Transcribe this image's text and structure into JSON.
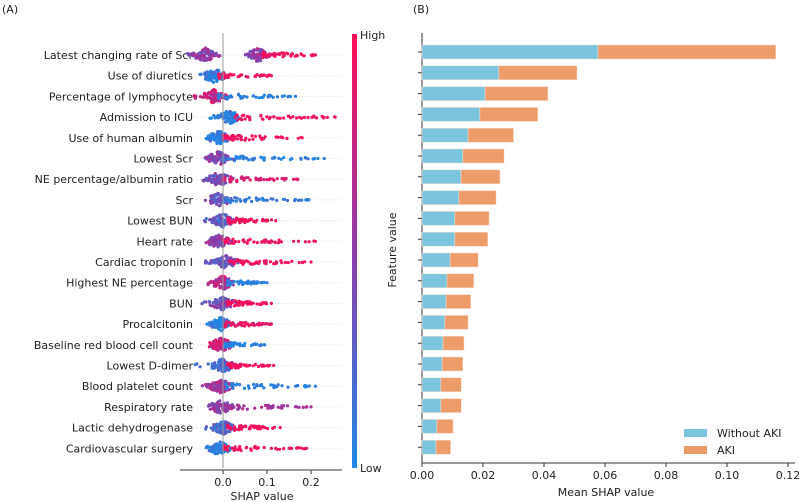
{
  "chart_data": [
    {
      "type": "scatter",
      "panel_label": "(A)",
      "subtype": "beeswarm",
      "xlabel": "SHAP value",
      "xticks": [
        "0.0",
        "0.1",
        "0.2"
      ],
      "xtick_values": [
        0,
        0.1,
        0.2
      ],
      "xlim": [
        -0.1,
        0.27
      ],
      "colorbar": {
        "high_label": "High",
        "low_label": "Low",
        "high_color": "#ff0d57",
        "low_color": "#1e88e5"
      },
      "features": [
        {
          "name": "Latest changing rate of Scr",
          "min": -0.08,
          "max": 0.21,
          "body": [
            -0.04,
            0.08
          ],
          "body_color": 0.5,
          "tail_color": 0.95
        },
        {
          "name": "Use of diuretics",
          "min": -0.05,
          "max": 0.11,
          "body": [
            -0.02
          ],
          "body_color": 0.05,
          "tail_color": 0.95
        },
        {
          "name": "Percentage of lymphocyte",
          "min": -0.07,
          "max": 0.165,
          "body": [
            -0.02
          ],
          "body_color": 0.75,
          "tail_color": 0.05
        },
        {
          "name": "Admission to ICU",
          "min": -0.03,
          "max": 0.255,
          "body": [
            0.015
          ],
          "body_color": 0.05,
          "tail_color": 0.95
        },
        {
          "name": "Use of human albumin",
          "min": -0.04,
          "max": 0.18,
          "body": [
            -0.01
          ],
          "body_color": 0.05,
          "tail_color": 0.95
        },
        {
          "name": "Lowest Scr",
          "min": -0.03,
          "max": 0.23,
          "body": [
            -0.01
          ],
          "body_color": 0.45,
          "tail_color": 0.05
        },
        {
          "name": "NE percentage/albumin ratio",
          "min": -0.05,
          "max": 0.17,
          "body": [
            -0.01
          ],
          "body_color": 0.4,
          "tail_color": 0.85
        },
        {
          "name": "Scr",
          "min": -0.03,
          "max": 0.195,
          "body": [
            -0.01
          ],
          "body_color": 0.35,
          "tail_color": 0.1
        },
        {
          "name": "Lowest BUN",
          "min": -0.045,
          "max": 0.12,
          "body": [
            0.0
          ],
          "body_color": 0.3,
          "tail_color": 0.95
        },
        {
          "name": "Heart rate",
          "min": -0.03,
          "max": 0.21,
          "body": [
            -0.01
          ],
          "body_color": 0.45,
          "tail_color": 0.95
        },
        {
          "name": "Cardiac troponin I",
          "min": -0.04,
          "max": 0.2,
          "body": [
            0.005
          ],
          "body_color": 0.3,
          "tail_color": 0.95
        },
        {
          "name": "Highest NE percentage",
          "min": -0.04,
          "max": 0.1,
          "body": [
            0.0
          ],
          "body_color": 0.7,
          "tail_color": 0.05
        },
        {
          "name": "BUN",
          "min": -0.05,
          "max": 0.11,
          "body": [
            0.0
          ],
          "body_color": 0.4,
          "tail_color": 0.95
        },
        {
          "name": "Procalcitonin",
          "min": -0.04,
          "max": 0.11,
          "body": [
            -0.005
          ],
          "body_color": 0.05,
          "tail_color": 0.9
        },
        {
          "name": "Baseline red blood cell count",
          "min": -0.025,
          "max": 0.095,
          "body": [
            -0.005
          ],
          "body_color": 0.8,
          "tail_color": 0.05
        },
        {
          "name": "Lowest D-dimer",
          "min": -0.065,
          "max": 0.115,
          "body": [
            0.0
          ],
          "body_color": 0.2,
          "tail_color": 0.95
        },
        {
          "name": "Blood platelet count",
          "min": -0.055,
          "max": 0.21,
          "body": [
            -0.005
          ],
          "body_color": 0.55,
          "tail_color": 0.05
        },
        {
          "name": "Respiratory rate",
          "min": -0.03,
          "max": 0.2,
          "body": [
            -0.005
          ],
          "body_color": 0.5,
          "tail_color": 0.6
        },
        {
          "name": "Lactic dehydrogenase",
          "min": -0.04,
          "max": 0.13,
          "body": [
            0.0
          ],
          "body_color": 0.2,
          "tail_color": 0.95
        },
        {
          "name": "Cardiovascular surgery",
          "min": -0.025,
          "max": 0.19,
          "body": [
            -0.008
          ],
          "body_color": 0.05,
          "tail_color": 0.95
        }
      ]
    },
    {
      "type": "bar",
      "panel_label": "(B)",
      "orientation": "horizontal-stacked",
      "ylabel": "Feature value",
      "xlabel": "Mean SHAP value",
      "xlim": [
        0,
        0.122
      ],
      "xticks": [
        "0.00",
        "0.02",
        "0.04",
        "0.06",
        "0.08",
        "0.10",
        "0.12"
      ],
      "xtick_values": [
        0,
        0.02,
        0.04,
        0.06,
        0.08,
        0.1,
        0.12
      ],
      "legend_position": "bottom-right",
      "series": [
        {
          "name": "Without AKI",
          "color": "#7ac4de",
          "values": [
            0.0577,
            0.0252,
            0.0207,
            0.019,
            0.0151,
            0.0134,
            0.0128,
            0.0121,
            0.0108,
            0.0108,
            0.0092,
            0.0082,
            0.0079,
            0.0075,
            0.0069,
            0.0066,
            0.0062,
            0.0062,
            0.0049,
            0.0046
          ]
        },
        {
          "name": "AKI",
          "color": "#ed9b69",
          "values": [
            0.0583,
            0.0256,
            0.0206,
            0.019,
            0.0149,
            0.0135,
            0.0128,
            0.0122,
            0.0112,
            0.0108,
            0.0092,
            0.0088,
            0.0081,
            0.0076,
            0.0069,
            0.0068,
            0.0067,
            0.0067,
            0.0053,
            0.0048
          ]
        }
      ]
    }
  ]
}
